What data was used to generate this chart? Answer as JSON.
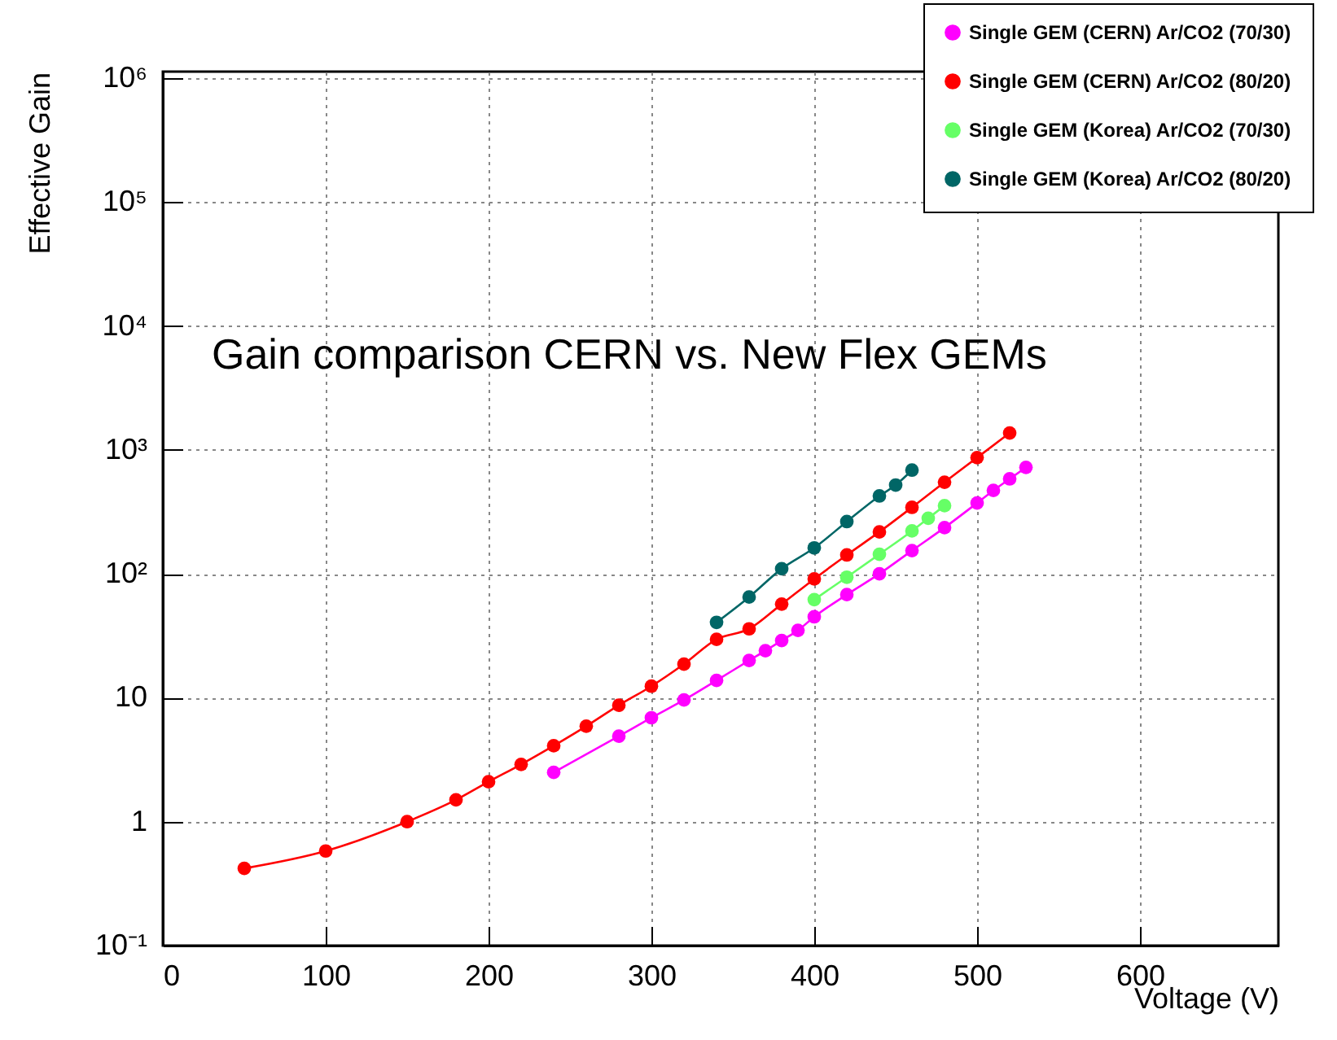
{
  "chart_data": {
    "type": "line",
    "title": "Gain comparison CERN vs. New Flex GEMs",
    "xlabel": "Voltage (V)",
    "ylabel": "Effective Gain",
    "log": "y",
    "grid": true,
    "legend": "top right",
    "marker": "circle",
    "line_style": "solid",
    "xlim": [
      0,
      685
    ],
    "xticks": [
      0,
      100,
      200,
      300,
      400,
      500,
      600
    ],
    "ylim": [
      0.1,
      1130000
    ],
    "yticks": [
      {
        "value": 0.1,
        "label": "10⁻¹"
      },
      1,
      10,
      {
        "value": 100,
        "label": "10²"
      },
      {
        "value": 1000,
        "label": "10³"
      },
      {
        "value": 10000,
        "label": "10⁴"
      },
      {
        "value": 100000,
        "label": "10⁵"
      },
      {
        "value": 1000000,
        "label": "10⁶"
      }
    ],
    "series": [
      {
        "name": "Single GEM (CERN) Ar/CO2 (70/30)",
        "color": "#ff00ff",
        "x": [
          240,
          280,
          300,
          320,
          340,
          360,
          370,
          380,
          390,
          400,
          420,
          440,
          460,
          480,
          500,
          510,
          520,
          530
        ],
        "values": [
          2.5,
          4.9,
          6.9,
          9.6,
          13.8,
          20,
          24,
          29,
          35,
          45,
          68,
          100,
          154,
          236,
          373,
          471,
          584,
          723
        ]
      },
      {
        "name": "Single GEM (CERN) Ar/CO2 (80/20)",
        "color": "#ff0000",
        "x": [
          50,
          100,
          150,
          180,
          200,
          220,
          240,
          260,
          280,
          300,
          320,
          340,
          360,
          380,
          400,
          420,
          440,
          460,
          480,
          500,
          520
        ],
        "values": [
          0.42,
          0.58,
          1.0,
          1.5,
          2.1,
          2.9,
          4.1,
          5.9,
          8.7,
          12.4,
          18.7,
          29.6,
          36,
          57,
          91,
          142,
          218,
          344,
          549,
          867,
          1370
        ]
      },
      {
        "name": "Single GEM (Korea) Ar/CO2 (70/30)",
        "color": "#66ff66",
        "x": [
          400,
          420,
          440,
          460,
          470,
          480
        ],
        "values": [
          62,
          94,
          144,
          222,
          281,
          355
        ]
      },
      {
        "name": "Single GEM (Korea) Ar/CO2 (80/20)",
        "color": "#006666",
        "x": [
          340,
          360,
          380,
          400,
          420,
          440,
          450,
          460
        ],
        "values": [
          40.6,
          65,
          110,
          162,
          264,
          425,
          521,
          687
        ]
      }
    ]
  }
}
